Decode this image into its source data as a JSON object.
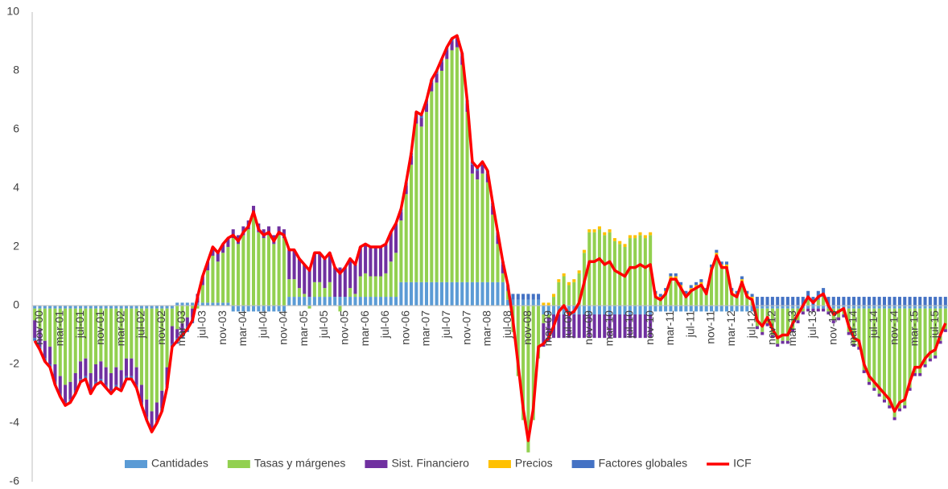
{
  "chart_data": {
    "type": "bar",
    "ylim": [
      -6,
      10
    ],
    "yticks": [
      -6,
      -4,
      -2,
      0,
      2,
      4,
      6,
      8,
      10
    ],
    "grid": false,
    "categories": [
      null,
      "nov-00",
      null,
      null,
      null,
      "mar-01",
      null,
      null,
      null,
      "jul-01",
      null,
      null,
      null,
      "nov-01",
      null,
      null,
      null,
      "mar-02",
      null,
      null,
      null,
      "jul-02",
      null,
      null,
      null,
      "nov-02",
      null,
      null,
      null,
      "mar-03",
      null,
      null,
      null,
      "jul-03",
      null,
      null,
      null,
      "nov-03",
      null,
      null,
      null,
      "mar-04",
      null,
      null,
      null,
      "jul-04",
      null,
      null,
      null,
      "nov-04",
      null,
      null,
      null,
      "mar-05",
      null,
      null,
      null,
      "jul-05",
      null,
      null,
      null,
      "nov-05",
      null,
      null,
      null,
      "mar-06",
      null,
      null,
      null,
      "jul-06",
      null,
      null,
      null,
      "nov-06",
      null,
      null,
      null,
      "mar-07",
      null,
      null,
      null,
      "jul-07",
      null,
      null,
      null,
      "nov-07",
      null,
      null,
      null,
      "mar-08",
      null,
      null,
      null,
      "jul-08",
      null,
      null,
      null,
      "nov-08",
      null,
      null,
      null,
      "mar-09",
      null,
      null,
      null,
      "jul-09",
      null,
      null,
      null,
      "nov-09",
      null,
      null,
      null,
      "mar-10",
      null,
      null,
      null,
      "jul-10",
      null,
      null,
      null,
      "nov-10",
      null,
      null,
      null,
      "mar-11",
      null,
      null,
      null,
      "jul-11",
      null,
      null,
      null,
      "nov-11",
      null,
      null,
      null,
      "mar-12",
      null,
      null,
      null,
      "jul-12",
      null,
      null,
      null,
      "nov-12",
      null,
      null,
      null,
      "mar-13",
      null,
      null,
      null,
      "jul-13",
      null,
      null,
      null,
      "nov-13",
      null,
      null,
      null,
      "mar-14",
      null,
      null,
      null,
      "jul-14",
      null,
      null,
      null,
      "nov-14",
      null,
      null,
      null,
      "mar-15",
      null,
      null,
      null,
      "jul-15",
      null,
      null
    ],
    "series": [
      {
        "name": "Cantidades",
        "color": "#5b9bd5",
        "values": [
          -0.1,
          -0.1,
          -0.1,
          -0.1,
          -0.1,
          -0.1,
          -0.1,
          -0.1,
          -0.1,
          -0.1,
          -0.1,
          -0.1,
          -0.1,
          -0.1,
          -0.1,
          -0.1,
          -0.1,
          -0.1,
          -0.1,
          -0.1,
          -0.1,
          -0.1,
          -0.1,
          -0.1,
          -0.1,
          -0.1,
          -0.1,
          -0.1,
          0.1,
          0.1,
          0.1,
          0.1,
          0.1,
          0.1,
          0.1,
          0.1,
          0.1,
          0.1,
          0.1,
          -0.2,
          -0.2,
          -0.2,
          -0.2,
          -0.2,
          -0.2,
          -0.2,
          -0.2,
          -0.2,
          -0.2,
          -0.2,
          0.3,
          0.3,
          0.3,
          0.3,
          0.3,
          0.3,
          0.3,
          0.3,
          0.3,
          0.3,
          0.3,
          0.3,
          0.3,
          0.3,
          0.3,
          0.3,
          0.3,
          0.3,
          0.3,
          0.3,
          0.3,
          0.3,
          0.8,
          0.8,
          0.8,
          0.8,
          0.8,
          0.8,
          0.8,
          0.8,
          0.8,
          0.8,
          0.8,
          0.8,
          0.8,
          0.8,
          0.8,
          0.8,
          0.8,
          0.8,
          0.8,
          0.8,
          0.8,
          0.2,
          0.2,
          0.2,
          0.2,
          0.2,
          0.2,
          0.2,
          -0.3,
          -0.3,
          -0.3,
          -0.3,
          -0.3,
          -0.3,
          -0.3,
          -0.3,
          -0.3,
          -0.3,
          -0.3,
          -0.3,
          -0.3,
          -0.3,
          -0.3,
          -0.3,
          -0.3,
          -0.3,
          -0.3,
          -0.3,
          -0.3,
          -0.3,
          -0.2,
          -0.2,
          -0.2,
          -0.2,
          -0.2,
          -0.2,
          -0.2,
          -0.2,
          -0.2,
          -0.2,
          -0.2,
          -0.2,
          -0.2,
          -0.2,
          -0.2,
          -0.2,
          -0.2,
          -0.2,
          -0.2,
          -0.2,
          -0.1,
          -0.1,
          -0.1,
          -0.1,
          -0.1,
          -0.1,
          -0.1,
          -0.1,
          -0.1,
          -0.1,
          -0.1,
          -0.1,
          -0.1,
          -0.1,
          -0.1,
          -0.1,
          -0.1,
          -0.1,
          -0.1,
          -0.1,
          -0.1,
          -0.1,
          -0.1,
          -0.1,
          -0.1,
          -0.1,
          -0.1,
          -0.1,
          -0.1,
          -0.1,
          -0.1,
          -0.1,
          -0.1,
          -0.1,
          -0.1,
          -0.1,
          -0.1,
          -0.1
        ]
      },
      {
        "name": "Tasas y márgenes",
        "color": "#92d050",
        "values": [
          -0.4,
          -0.7,
          -1.1,
          -1.3,
          -1.9,
          -2.3,
          -2.6,
          -2.5,
          -2.2,
          -1.8,
          -1.7,
          -2.2,
          -1.9,
          -1.8,
          -2.0,
          -2.2,
          -2.0,
          -2.1,
          -1.7,
          -1.7,
          -2.0,
          -2.6,
          -3.1,
          -3.5,
          -3.2,
          -2.8,
          -2.0,
          -0.6,
          -0.8,
          -0.6,
          -0.4,
          -0.1,
          -0.1,
          0.6,
          1.1,
          1.6,
          1.4,
          1.7,
          1.9,
          2.3,
          2.1,
          2.4,
          2.6,
          3.1,
          2.5,
          2.3,
          2.4,
          2.1,
          2.4,
          2.3,
          0.6,
          0.6,
          0.3,
          0.1,
          -0.1,
          0.5,
          0.5,
          0.3,
          0.5,
          0.0,
          -0.2,
          0.0,
          0.3,
          0.1,
          0.7,
          0.8,
          0.7,
          0.7,
          0.7,
          0.8,
          1.2,
          1.5,
          2.1,
          3.0,
          4.0,
          5.4,
          5.3,
          5.8,
          6.5,
          6.8,
          7.2,
          7.6,
          7.9,
          8.0,
          7.4,
          5.8,
          3.7,
          3.5,
          3.7,
          3.4,
          2.3,
          1.3,
          0.3,
          0.3,
          -0.9,
          -2.4,
          -3.9,
          -5.0,
          -3.9,
          -1.8,
          -0.3,
          -0.1,
          0.3,
          0.8,
          1.0,
          0.7,
          0.8,
          1.1,
          1.8,
          2.5,
          2.5,
          2.6,
          2.4,
          2.5,
          2.2,
          2.1,
          2.0,
          2.3,
          2.3,
          2.4,
          2.3,
          2.4,
          0.3,
          0.2,
          0.4,
          0.9,
          0.9,
          0.6,
          0.3,
          0.5,
          0.6,
          0.7,
          0.4,
          1.2,
          1.7,
          1.3,
          1.3,
          0.4,
          0.3,
          0.8,
          0.3,
          0.2,
          -0.6,
          -0.8,
          -0.5,
          -0.9,
          -1.2,
          -1.1,
          -1.1,
          -0.7,
          -0.4,
          -0.1,
          0.2,
          0.0,
          0.2,
          0.3,
          -0.1,
          -0.4,
          -0.3,
          -0.2,
          -0.8,
          -1.2,
          -1.3,
          -2.1,
          -2.5,
          -2.7,
          -2.9,
          -3.1,
          -3.3,
          -3.7,
          -3.4,
          -3.3,
          -2.7,
          -2.2,
          -2.2,
          -1.9,
          -1.7,
          -1.6,
          -1.1,
          -0.7
        ]
      },
      {
        "name": "Sist. Financiero",
        "color": "#7030a0",
        "values": [
          -0.6,
          -0.6,
          -0.6,
          -0.6,
          -0.6,
          -0.6,
          -0.6,
          -0.6,
          -0.6,
          -0.6,
          -0.6,
          -0.6,
          -0.6,
          -0.6,
          -0.6,
          -0.6,
          -0.6,
          -0.6,
          -0.6,
          -0.6,
          -0.6,
          -0.6,
          -0.6,
          -0.6,
          -0.6,
          -0.6,
          -0.6,
          -0.6,
          -0.3,
          -0.3,
          -0.3,
          -0.3,
          0.3,
          0.3,
          0.3,
          0.3,
          0.3,
          0.3,
          0.3,
          0.3,
          0.3,
          0.3,
          0.3,
          0.3,
          0.3,
          0.3,
          0.3,
          0.3,
          0.3,
          0.3,
          1.0,
          1.0,
          1.0,
          1.0,
          1.0,
          1.0,
          1.0,
          1.0,
          1.0,
          1.0,
          1.0,
          1.0,
          1.0,
          1.0,
          1.0,
          1.0,
          1.0,
          1.0,
          1.0,
          1.0,
          1.0,
          1.0,
          0.3,
          0.3,
          0.3,
          0.3,
          0.3,
          0.3,
          0.3,
          0.3,
          0.3,
          0.3,
          0.3,
          0.3,
          0.3,
          0.3,
          0.3,
          0.3,
          0.3,
          0.3,
          0.3,
          0.3,
          0.3,
          0,
          0,
          0,
          0,
          0,
          0,
          0,
          -0.8,
          -0.8,
          -0.8,
          -0.8,
          -0.8,
          -0.8,
          -0.8,
          -0.8,
          -0.8,
          -0.8,
          -0.8,
          -0.8,
          -0.8,
          -0.8,
          -0.8,
          -0.8,
          -0.8,
          -0.8,
          -0.8,
          -0.8,
          -0.8,
          -0.8,
          0,
          0,
          0,
          0,
          0,
          0,
          0,
          0,
          0,
          0,
          0,
          0,
          0,
          0,
          0,
          0,
          0,
          0,
          0,
          0,
          -0.1,
          -0.1,
          -0.1,
          -0.1,
          -0.1,
          -0.1,
          -0.1,
          -0.1,
          -0.1,
          -0.1,
          -0.1,
          -0.1,
          -0.1,
          -0.1,
          -0.1,
          -0.1,
          -0.1,
          -0.1,
          -0.1,
          -0.1,
          -0.1,
          -0.1,
          -0.1,
          -0.1,
          -0.1,
          -0.1,
          -0.1,
          -0.1,
          -0.1,
          -0.1,
          -0.1,
          -0.1,
          -0.1,
          -0.1,
          -0.1,
          -0.1,
          -0.1,
          -0.1
        ]
      },
      {
        "name": "Precios",
        "color": "#ffc000",
        "values": [
          0,
          0,
          0,
          0,
          0,
          0,
          0,
          0,
          0,
          0,
          0,
          0,
          0,
          0,
          0,
          0,
          0,
          0,
          0,
          0,
          0,
          0,
          0,
          0,
          0,
          0,
          0,
          0,
          0,
          0,
          0,
          0,
          0,
          0,
          0,
          0,
          0,
          0,
          0,
          0,
          0,
          0,
          0,
          0,
          0,
          0,
          0,
          0,
          0,
          0,
          0,
          0,
          0,
          0,
          0,
          0,
          0,
          0,
          0,
          0,
          0,
          0,
          0,
          0,
          0,
          0,
          0,
          0,
          0,
          0,
          0,
          0,
          0,
          0,
          0,
          0,
          0,
          0,
          0,
          0,
          0,
          0,
          0,
          0,
          0,
          0,
          0,
          0,
          0,
          0,
          0,
          0,
          0,
          0,
          0,
          0,
          0,
          0,
          0,
          0,
          0.1,
          0.1,
          0.1,
          0.1,
          0.1,
          0.1,
          0.1,
          0.1,
          0.1,
          0.1,
          0.1,
          0.1,
          0.1,
          0.1,
          0.1,
          0.1,
          0.1,
          0.1,
          0.1,
          0.1,
          0.1,
          0.1,
          0.1,
          0.1,
          0.1,
          0.1,
          0.1,
          0.1,
          0.1,
          0.1,
          0.1,
          0.1,
          0.1,
          0.1,
          0.1,
          0.1,
          0.1,
          0.1,
          0.1,
          0.1,
          0.1,
          0.1,
          0,
          0,
          0,
          0,
          0,
          0,
          0,
          0,
          0,
          0,
          0,
          0,
          0,
          0,
          0,
          0,
          0,
          0,
          0,
          0,
          0,
          0,
          0,
          0,
          0,
          0,
          0,
          0,
          0,
          0,
          0,
          0,
          0,
          0,
          0,
          0,
          0,
          0
        ]
      },
      {
        "name": "Factores globales",
        "color": "#4472c4",
        "values": [
          -0.1,
          -0.1,
          -0.1,
          -0.1,
          -0.1,
          -0.1,
          -0.1,
          -0.1,
          -0.1,
          -0.1,
          -0.1,
          -0.1,
          -0.1,
          -0.1,
          -0.1,
          -0.1,
          -0.1,
          -0.1,
          -0.1,
          -0.1,
          -0.1,
          -0.1,
          -0.1,
          -0.1,
          -0.1,
          -0.1,
          -0.1,
          -0.1,
          -0.2,
          -0.2,
          -0.2,
          -0.2,
          0,
          0,
          0,
          0,
          0,
          0,
          0,
          0,
          0,
          0,
          0,
          0,
          0,
          0,
          0,
          0,
          0,
          0,
          0,
          0,
          0,
          0,
          0,
          0,
          0,
          0,
          0,
          0,
          0,
          0,
          0,
          0,
          0,
          0,
          0,
          0,
          0,
          0,
          0,
          0,
          0.1,
          0.1,
          0.1,
          0.1,
          0.1,
          0.1,
          0.1,
          0.1,
          0.1,
          0.1,
          0.1,
          0.1,
          0.1,
          0.1,
          0.1,
          0.1,
          0.1,
          0.1,
          0.1,
          0.1,
          0.1,
          0.2,
          0.2,
          0.2,
          0.2,
          0.2,
          0.2,
          0.2,
          0,
          0,
          0,
          0,
          0,
          0,
          0,
          0,
          0,
          0,
          0,
          0,
          0,
          0,
          0,
          0,
          0,
          0,
          0,
          0,
          0,
          0,
          0.1,
          0.1,
          0.1,
          0.1,
          0.1,
          0.1,
          0.1,
          0.1,
          0.1,
          0.1,
          0.1,
          0.1,
          0.1,
          0.1,
          0.1,
          0.1,
          0.1,
          0.1,
          0.1,
          0.1,
          0.3,
          0.3,
          0.3,
          0.3,
          0.3,
          0.3,
          0.3,
          0.3,
          0.3,
          0.3,
          0.3,
          0.3,
          0.3,
          0.3,
          0.3,
          0.3,
          0.3,
          0.3,
          0.3,
          0.3,
          0.3,
          0.3,
          0.3,
          0.3,
          0.3,
          0.3,
          0.3,
          0.3,
          0.3,
          0.3,
          0.3,
          0.3,
          0.3,
          0.3,
          0.3,
          0.3,
          0.3,
          0.3
        ]
      },
      {
        "name": "ICF",
        "color": "#ff0000",
        "type": "line",
        "values": [
          -1.2,
          -1.5,
          -1.9,
          -2.1,
          -2.7,
          -3.1,
          -3.4,
          -3.3,
          -3.0,
          -2.6,
          -2.5,
          -3.0,
          -2.7,
          -2.6,
          -2.8,
          -3.0,
          -2.8,
          -2.9,
          -2.5,
          -2.5,
          -2.8,
          -3.4,
          -3.9,
          -4.3,
          -4.0,
          -3.6,
          -2.8,
          -1.4,
          -1.2,
          -1.0,
          -0.8,
          -0.5,
          0.3,
          1.0,
          1.5,
          2.0,
          1.8,
          2.1,
          2.3,
          2.4,
          2.2,
          2.5,
          2.7,
          3.2,
          2.6,
          2.4,
          2.5,
          2.2,
          2.5,
          2.4,
          1.9,
          1.9,
          1.6,
          1.4,
          1.2,
          1.8,
          1.8,
          1.6,
          1.8,
          1.3,
          1.1,
          1.3,
          1.6,
          1.4,
          2.0,
          2.1,
          2.0,
          2.0,
          2.0,
          2.1,
          2.5,
          2.8,
          3.3,
          4.2,
          5.2,
          6.6,
          6.5,
          7.0,
          7.7,
          8.0,
          8.4,
          8.8,
          9.1,
          9.2,
          8.6,
          7.0,
          4.9,
          4.7,
          4.9,
          4.6,
          3.5,
          2.5,
          1.5,
          0.7,
          -0.5,
          -2.0,
          -3.5,
          -4.6,
          -3.5,
          -1.4,
          -1.3,
          -1.1,
          -0.7,
          -0.2,
          0.0,
          -0.3,
          -0.2,
          0.1,
          0.8,
          1.5,
          1.5,
          1.6,
          1.4,
          1.5,
          1.2,
          1.1,
          1.0,
          1.3,
          1.3,
          1.4,
          1.3,
          1.4,
          0.3,
          0.2,
          0.4,
          0.9,
          0.9,
          0.6,
          0.3,
          0.5,
          0.6,
          0.7,
          0.4,
          1.2,
          1.7,
          1.3,
          1.3,
          0.4,
          0.3,
          0.8,
          0.3,
          0.2,
          -0.5,
          -0.7,
          -0.4,
          -0.8,
          -1.1,
          -1.0,
          -1.0,
          -0.6,
          -0.3,
          0.0,
          0.3,
          0.1,
          0.3,
          0.4,
          0.0,
          -0.3,
          -0.2,
          -0.1,
          -0.7,
          -1.1,
          -1.2,
          -2.0,
          -2.4,
          -2.6,
          -2.8,
          -3.0,
          -3.2,
          -3.6,
          -3.3,
          -3.2,
          -2.6,
          -2.1,
          -2.1,
          -1.8,
          -1.6,
          -1.5,
          -1.0,
          -0.6
        ]
      }
    ]
  }
}
